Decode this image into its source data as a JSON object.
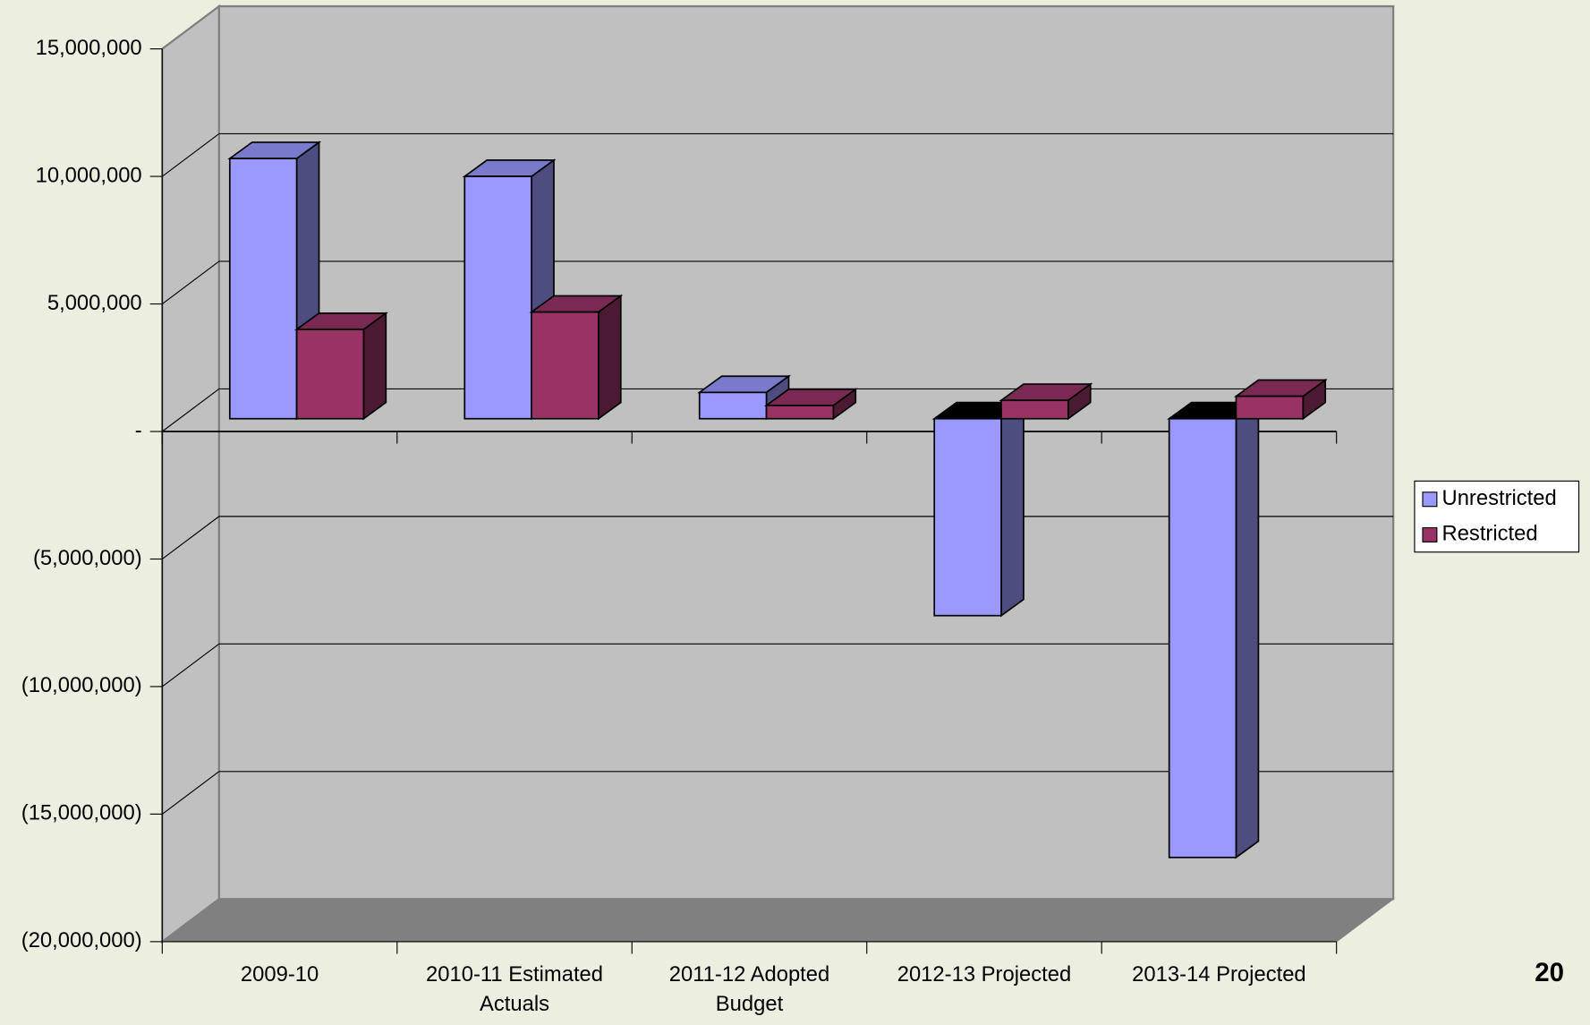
{
  "chart_data": {
    "type": "bar3d",
    "categories": [
      "2009-10",
      "2010-11 Estimated Actuals",
      "2011-12 Adopted Budget",
      "2012-13 Projected",
      "2013-14 Projected"
    ],
    "series": [
      {
        "name": "Unrestricted",
        "color": "#9999ff",
        "values": [
          10200000,
          9500000,
          1030000,
          -7720000,
          -17200000
        ]
      },
      {
        "name": "Restricted",
        "color": "#993366",
        "values": [
          3500000,
          4180000,
          520000,
          720000,
          880000
        ]
      }
    ],
    "ylim": [
      -20000000,
      15000000
    ],
    "yticks": [
      {
        "value": 15000000,
        "label": "15,000,000"
      },
      {
        "value": 10000000,
        "label": "10,000,000"
      },
      {
        "value": 5000000,
        "label": "5,000,000"
      },
      {
        "value": 0,
        "label": "-"
      },
      {
        "value": -5000000,
        "label": "(5,000,000)"
      },
      {
        "value": -10000000,
        "label": "(10,000,000)"
      },
      {
        "value": -15000000,
        "label": "(15,000,000)"
      },
      {
        "value": -20000000,
        "label": "(20,000,000)"
      }
    ],
    "grid": true,
    "legend": "right"
  },
  "page_number": "20"
}
